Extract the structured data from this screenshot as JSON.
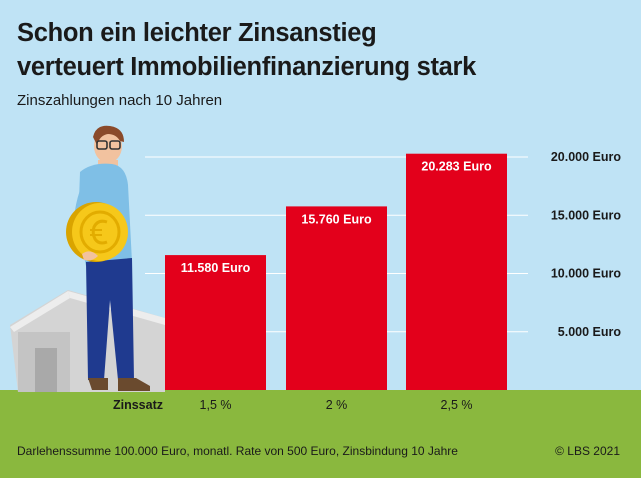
{
  "title_lines": [
    "Schon ein leichter Zinsanstieg",
    "verteuert Immobilienfinanzierung stark"
  ],
  "subtitle": "Zinszahlungen nach 10 Jahren",
  "footnote": "Darlehenssumme 100.000 Euro, monatl. Rate von 500 Euro, Zinsbindung 10 Jahre",
  "credit": "© LBS 2021",
  "colors": {
    "background": "#bfe3f5",
    "ground": "#8ab83e",
    "bar": "#e3001b",
    "grid": "#ffffff"
  },
  "illustration": [
    "person-icon",
    "coin-icon",
    "house-icon"
  ],
  "chart_data": {
    "type": "bar",
    "x_axis_title": "Zinssatz",
    "categories": [
      "1,5 %",
      "2 %",
      "2,5 %"
    ],
    "values": [
      11580,
      15760,
      20283
    ],
    "value_labels": [
      "11.580 Euro",
      "15.760 Euro",
      "20.283 Euro"
    ],
    "yticks": [
      5000,
      10000,
      15000,
      20000
    ],
    "ytick_labels": [
      "5.000 Euro",
      "10.000 Euro",
      "15.000 Euro",
      "20.000 Euro"
    ],
    "ylim": [
      0,
      20000
    ],
    "grid": true,
    "legend": "none"
  }
}
